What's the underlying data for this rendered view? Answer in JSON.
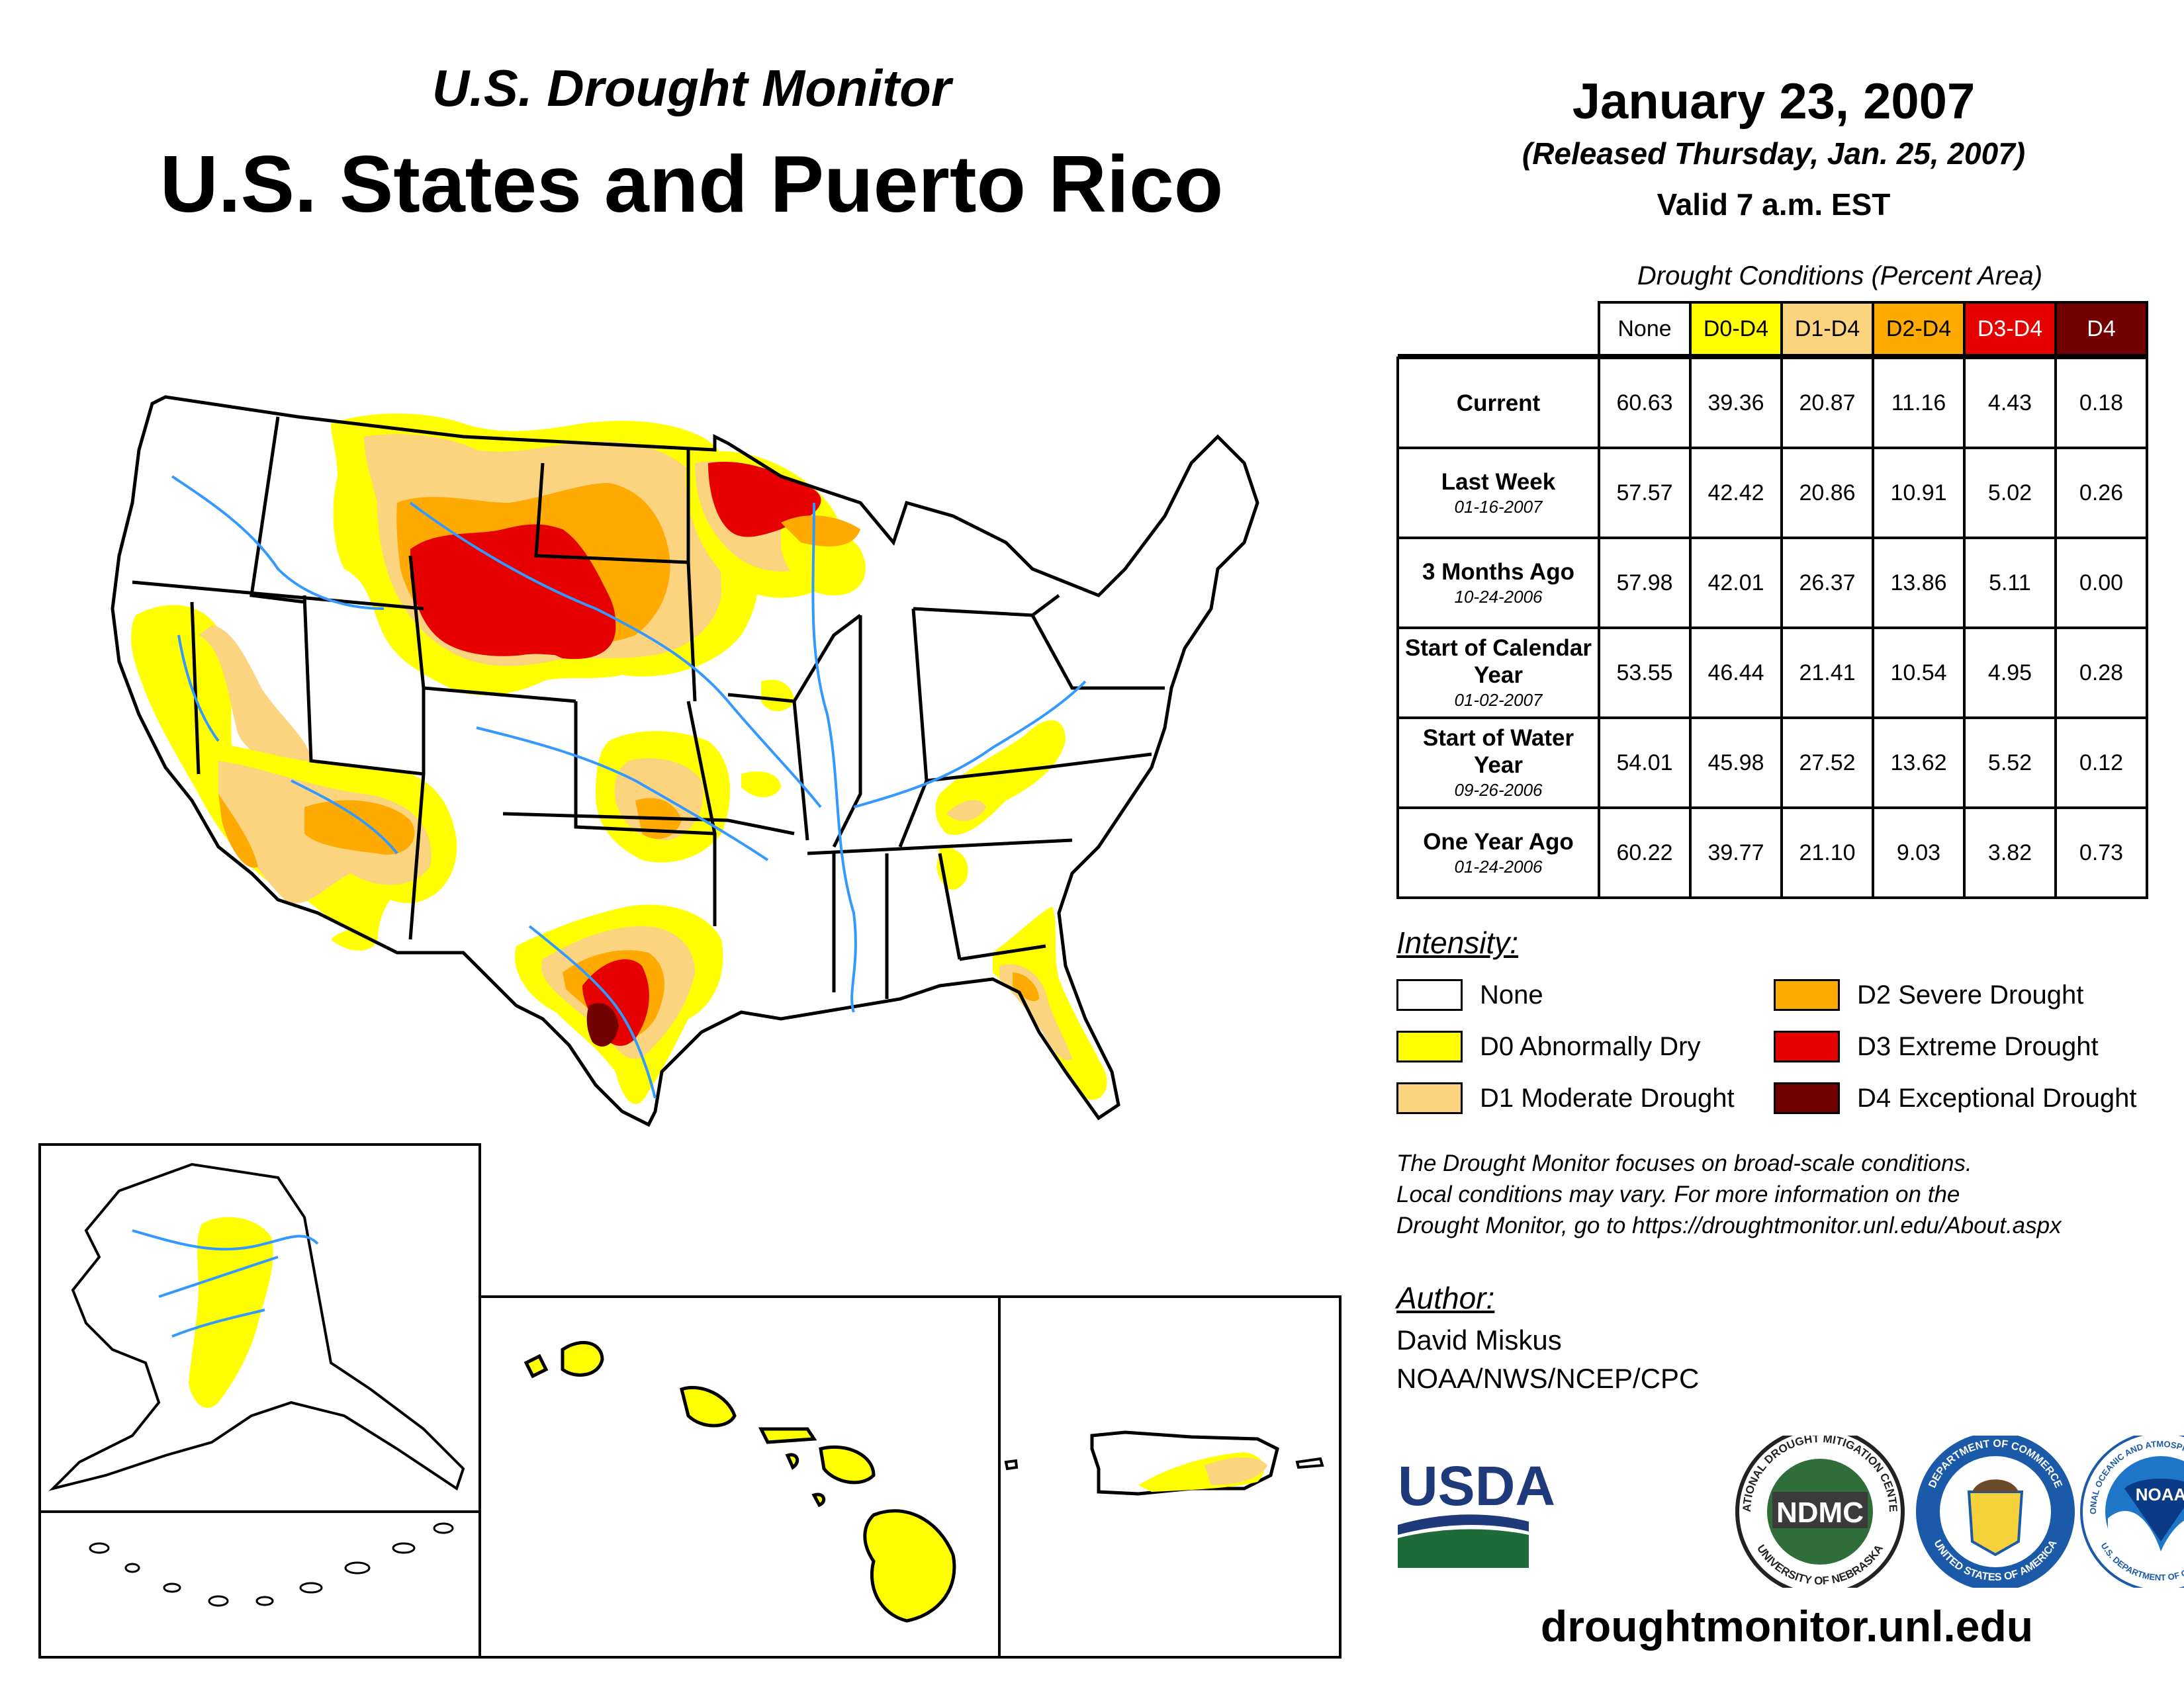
{
  "header": {
    "subtitle": "U.S. Drought Monitor",
    "title": "U.S. States and Puerto Rico",
    "date": "January 23, 2007",
    "released": "(Released Thursday, Jan. 25, 2007)",
    "valid": "Valid 7 a.m. EST"
  },
  "table": {
    "caption": "Drought Conditions (Percent Area)",
    "columns": [
      "None",
      "D0-D4",
      "D1-D4",
      "D2-D4",
      "D3-D4",
      "D4"
    ],
    "column_colors": [
      "#ffffff",
      "#ffff00",
      "#fcd37f",
      "#ffaa00",
      "#e60000",
      "#730000"
    ],
    "rows": [
      {
        "label": "Current",
        "date": "",
        "values": [
          "60.63",
          "39.36",
          "20.87",
          "11.16",
          "4.43",
          "0.18"
        ]
      },
      {
        "label": "Last Week",
        "date": "01-16-2007",
        "values": [
          "57.57",
          "42.42",
          "20.86",
          "10.91",
          "5.02",
          "0.26"
        ]
      },
      {
        "label": "3 Months Ago",
        "date": "10-24-2006",
        "values": [
          "57.98",
          "42.01",
          "26.37",
          "13.86",
          "5.11",
          "0.00"
        ]
      },
      {
        "label": "Start of Calendar Year",
        "date": "01-02-2007",
        "values": [
          "53.55",
          "46.44",
          "21.41",
          "10.54",
          "4.95",
          "0.28"
        ]
      },
      {
        "label": "Start of Water Year",
        "date": "09-26-2006",
        "values": [
          "54.01",
          "45.98",
          "27.52",
          "13.62",
          "5.52",
          "0.12"
        ]
      },
      {
        "label": "One Year Ago",
        "date": "01-24-2006",
        "values": [
          "60.22",
          "39.77",
          "21.10",
          "9.03",
          "3.82",
          "0.73"
        ]
      }
    ]
  },
  "legend": {
    "title": "Intensity:",
    "items": [
      {
        "label": "None",
        "color": "#ffffff"
      },
      {
        "label": "D0 Abnormally Dry",
        "color": "#ffff00"
      },
      {
        "label": "D1 Moderate Drought",
        "color": "#fcd37f"
      },
      {
        "label": "D2 Severe Drought",
        "color": "#ffaa00"
      },
      {
        "label": "D3 Extreme Drought",
        "color": "#e60000"
      },
      {
        "label": "D4 Exceptional Drought",
        "color": "#730000"
      }
    ]
  },
  "note": {
    "line1": "The Drought Monitor focuses on broad-scale conditions.",
    "line2": "Local conditions may vary. For more information on the",
    "line3": "Drought Monitor, go to https://droughtmonitor.unl.edu/About.aspx"
  },
  "author": {
    "title": "Author:",
    "name": "David Miskus",
    "org": "NOAA/NWS/NCEP/CPC"
  },
  "logos": {
    "usda": "USDA",
    "ndmc": "NDMC",
    "ndmc_ring_top": "NATIONAL DROUGHT MITIGATION CENTER",
    "ndmc_ring_bottom": "UNIVERSITY OF NEBRASKA",
    "commerce_ring_top": "DEPARTMENT OF COMMERCE",
    "commerce_ring_bottom": "UNITED STATES OF AMERICA",
    "noaa": "NOAA",
    "noaa_ring_top": "NATIONAL OCEANIC AND ATMOSPHERIC ADMINISTRATION",
    "noaa_ring_bottom": "U.S. DEPARTMENT OF COMMERCE"
  },
  "website": "droughtmonitor.unl.edu"
}
